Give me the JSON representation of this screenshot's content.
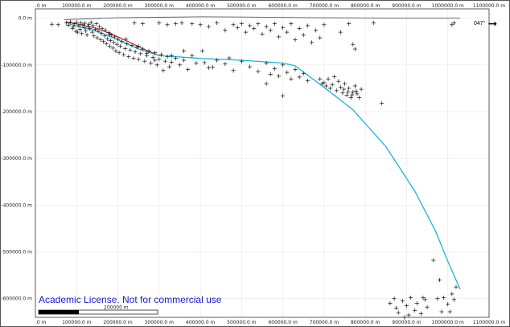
{
  "viewer": {
    "azimuth_label": "047°",
    "license_text": "Academic License. Not for commercial use",
    "scale_bar_label": "200000 m"
  },
  "chart_data": {
    "type": "scatter",
    "xlim": [
      0,
      1100000
    ],
    "ylim": [
      -640000,
      20000
    ],
    "x_ticks": [
      0,
      100000,
      200000,
      300000,
      400000,
      500000,
      600000,
      700000,
      800000,
      900000,
      1000000,
      1100000
    ],
    "x_tick_labels": [
      ".0 m",
      "100000.0 m",
      "200000.0 m",
      "300000.0 m",
      "400000.0 m",
      "500000.0 m",
      "600000.0 m",
      "700000.0 m",
      "800000.0 m",
      "900000.0 m",
      "1000000.0 m",
      "1100000.0 m"
    ],
    "y_ticks": [
      0,
      -100000,
      -200000,
      -300000,
      -400000,
      -500000,
      -600000
    ],
    "y_tick_labels": [
      "0.0 m",
      "-100000.0 m",
      "-200000.0 m",
      "-300000.0 m",
      "-400000.0 m",
      "-500000.0 m",
      "-600000.0 m"
    ],
    "grid": true,
    "colors": {
      "topography": "#555555",
      "red_line": "#d42020",
      "cyan_line": "#1cb5d6",
      "points": "#111111"
    },
    "lines": [
      {
        "id": "topography",
        "x": [
          70000,
          200000,
          300000,
          400000,
          500000,
          700000,
          900000,
          1030000
        ],
        "y": [
          -3000,
          1000,
          2000,
          3000,
          2500,
          1000,
          0,
          0
        ]
      },
      {
        "id": "red-line",
        "x": [
          75000,
          110000,
          150000,
          190000,
          230000,
          260000,
          300000
        ],
        "y": [
          -8000,
          -14000,
          -22000,
          -36000,
          -52000,
          -65000,
          -80000
        ]
      },
      {
        "id": "cyan-line",
        "x": [
          80000,
          150000,
          200000,
          250000,
          300000,
          400000,
          500000,
          600000,
          630000,
          700000,
          770000,
          850000,
          920000,
          970000,
          1000000,
          1030000
        ],
        "y": [
          -12000,
          -28000,
          -46000,
          -66000,
          -80000,
          -86000,
          -90000,
          -96000,
          -102000,
          -148000,
          -196000,
          -275000,
          -370000,
          -455000,
          -520000,
          -580000
        ]
      }
    ],
    "points": [
      [
        40000,
        -13000
      ],
      [
        55000,
        -14000
      ],
      [
        75000,
        -10000
      ],
      [
        80000,
        -15000
      ],
      [
        85000,
        -8000
      ],
      [
        90000,
        -22000
      ],
      [
        92000,
        -18000
      ],
      [
        95000,
        -12000
      ],
      [
        98000,
        -28000
      ],
      [
        100000,
        -9000
      ],
      [
        102000,
        -30000
      ],
      [
        105000,
        -16000
      ],
      [
        108000,
        -24000
      ],
      [
        110000,
        -10000
      ],
      [
        112000,
        -33000
      ],
      [
        115000,
        -14000
      ],
      [
        118000,
        -20000
      ],
      [
        120000,
        -11000
      ],
      [
        122000,
        -27000
      ],
      [
        125000,
        -36000
      ],
      [
        128000,
        -18000
      ],
      [
        130000,
        -13000
      ],
      [
        132000,
        -22000
      ],
      [
        135000,
        -9000
      ],
      [
        138000,
        -30000
      ],
      [
        140000,
        -16000
      ],
      [
        142000,
        -38000
      ],
      [
        145000,
        -24000
      ],
      [
        148000,
        -12000
      ],
      [
        150000,
        -42000
      ],
      [
        152000,
        -28000
      ],
      [
        155000,
        -18000
      ],
      [
        158000,
        -46000
      ],
      [
        160000,
        -33000
      ],
      [
        162000,
        -22000
      ],
      [
        165000,
        -50000
      ],
      [
        168000,
        -38000
      ],
      [
        170000,
        -26000
      ],
      [
        172000,
        -55000
      ],
      [
        175000,
        -44000
      ],
      [
        178000,
        -31000
      ],
      [
        180000,
        -60000
      ],
      [
        182000,
        -48000
      ],
      [
        185000,
        -36000
      ],
      [
        188000,
        -64000
      ],
      [
        190000,
        -52000
      ],
      [
        192000,
        -40000
      ],
      [
        195000,
        -70000
      ],
      [
        198000,
        -56000
      ],
      [
        200000,
        -45000
      ],
      [
        203000,
        -74000
      ],
      [
        206000,
        -60000
      ],
      [
        210000,
        -50000
      ],
      [
        214000,
        -78000
      ],
      [
        218000,
        -65000
      ],
      [
        222000,
        -55000
      ],
      [
        226000,
        -82000
      ],
      [
        230000,
        -68000
      ],
      [
        234000,
        -58000
      ],
      [
        238000,
        -86000
      ],
      [
        242000,
        -72000
      ],
      [
        246000,
        -62000
      ],
      [
        250000,
        -88000
      ],
      [
        255000,
        -76000
      ],
      [
        260000,
        -66000
      ],
      [
        265000,
        -92000
      ],
      [
        270000,
        -80000
      ],
      [
        275000,
        -70000
      ],
      [
        280000,
        -96000
      ],
      [
        285000,
        -84000
      ],
      [
        290000,
        -74000
      ],
      [
        295000,
        -100000
      ],
      [
        300000,
        -88000
      ],
      [
        305000,
        -78000
      ],
      [
        310000,
        -112000
      ],
      [
        315000,
        -92000
      ],
      [
        320000,
        -82000
      ],
      [
        325000,
        -104000
      ],
      [
        330000,
        -94000
      ],
      [
        340000,
        -86000
      ],
      [
        350000,
        -100000
      ],
      [
        360000,
        -90000
      ],
      [
        370000,
        -110000
      ],
      [
        380000,
        -80000
      ],
      [
        390000,
        -96000
      ],
      [
        405000,
        -70000
      ],
      [
        420000,
        -106000
      ],
      [
        440000,
        -90000
      ],
      [
        460000,
        -98000
      ],
      [
        480000,
        -112000
      ],
      [
        500000,
        -92000
      ],
      [
        520000,
        -104000
      ],
      [
        540000,
        -114000
      ],
      [
        560000,
        -96000
      ],
      [
        570000,
        -120000
      ],
      [
        580000,
        -108000
      ],
      [
        590000,
        -124000
      ],
      [
        600000,
        -100000
      ],
      [
        610000,
        -116000
      ],
      [
        620000,
        -130000
      ],
      [
        630000,
        -110000
      ],
      [
        640000,
        -126000
      ],
      [
        650000,
        -118000
      ],
      [
        660000,
        -134000
      ],
      [
        600000,
        -166000
      ],
      [
        560000,
        -140000
      ],
      [
        240000,
        -10000
      ],
      [
        260000,
        -12000
      ],
      [
        300000,
        -10000
      ],
      [
        320000,
        -14000
      ],
      [
        340000,
        -12000
      ],
      [
        355000,
        -10000
      ],
      [
        380000,
        -12000
      ],
      [
        400000,
        -14000
      ],
      [
        420000,
        -18000
      ],
      [
        440000,
        -10000
      ],
      [
        460000,
        -26000
      ],
      [
        480000,
        -14000
      ],
      [
        490000,
        -20000
      ],
      [
        500000,
        -12000
      ],
      [
        510000,
        -30000
      ],
      [
        520000,
        -16000
      ],
      [
        530000,
        -22000
      ],
      [
        540000,
        -12000
      ],
      [
        550000,
        -34000
      ],
      [
        560000,
        -18000
      ],
      [
        570000,
        -26000
      ],
      [
        580000,
        -12000
      ],
      [
        590000,
        -40000
      ],
      [
        600000,
        -20000
      ],
      [
        610000,
        -30000
      ],
      [
        620000,
        -12000
      ],
      [
        630000,
        -46000
      ],
      [
        640000,
        -22000
      ],
      [
        650000,
        -36000
      ],
      [
        660000,
        -16000
      ],
      [
        670000,
        -52000
      ],
      [
        680000,
        -26000
      ],
      [
        690000,
        -42000
      ],
      [
        700000,
        -14000
      ],
      [
        740000,
        -30000
      ],
      [
        760000,
        -12000
      ],
      [
        770000,
        -56000
      ],
      [
        775000,
        -66000
      ],
      [
        820000,
        -10000
      ],
      [
        180000,
        -35000
      ],
      [
        220000,
        -45000
      ],
      [
        250000,
        -60000
      ],
      [
        270000,
        -75000
      ],
      [
        290000,
        -90000
      ],
      [
        330000,
        -80000
      ],
      [
        360000,
        -70000
      ],
      [
        410000,
        -95000
      ],
      [
        430000,
        -105000
      ],
      [
        470000,
        -85000
      ],
      [
        690000,
        -130000
      ],
      [
        700000,
        -138000
      ],
      [
        705000,
        -145000
      ],
      [
        710000,
        -130000
      ],
      [
        715000,
        -150000
      ],
      [
        720000,
        -142000
      ],
      [
        725000,
        -125000
      ],
      [
        730000,
        -155000
      ],
      [
        740000,
        -148000
      ],
      [
        745000,
        -160000
      ],
      [
        750000,
        -140000
      ],
      [
        755000,
        -165000
      ],
      [
        760000,
        -150000
      ],
      [
        765000,
        -170000
      ],
      [
        770000,
        -158000
      ],
      [
        775000,
        -145000
      ],
      [
        780000,
        -162000
      ],
      [
        785000,
        -170000
      ],
      [
        790000,
        -152000
      ],
      [
        695000,
        -140000
      ],
      [
        735000,
        -135000
      ],
      [
        748000,
        -152000
      ],
      [
        758000,
        -158000
      ],
      [
        768000,
        -164000
      ],
      [
        778000,
        -156000
      ],
      [
        840000,
        -182000
      ],
      [
        965000,
        -518000
      ],
      [
        980000,
        -560000
      ],
      [
        990000,
        -598000
      ],
      [
        1000000,
        -612000
      ],
      [
        1010000,
        -590000
      ],
      [
        1015000,
        -602000
      ],
      [
        1020000,
        -575000
      ],
      [
        1005000,
        -628000
      ],
      [
        975000,
        -600000
      ],
      [
        985000,
        -628000
      ],
      [
        860000,
        -610000
      ],
      [
        870000,
        -600000
      ],
      [
        875000,
        -620000
      ],
      [
        880000,
        -630000
      ],
      [
        890000,
        -605000
      ],
      [
        900000,
        -615000
      ],
      [
        910000,
        -598000
      ],
      [
        920000,
        -625000
      ],
      [
        925000,
        -610000
      ],
      [
        935000,
        -632000
      ],
      [
        945000,
        -602000
      ],
      [
        950000,
        -618000
      ],
      [
        895000,
        -640000
      ],
      [
        905000,
        -635000
      ],
      [
        940000,
        -598000
      ],
      [
        1010000,
        -14000
      ],
      [
        1015000,
        -10000
      ]
    ]
  }
}
